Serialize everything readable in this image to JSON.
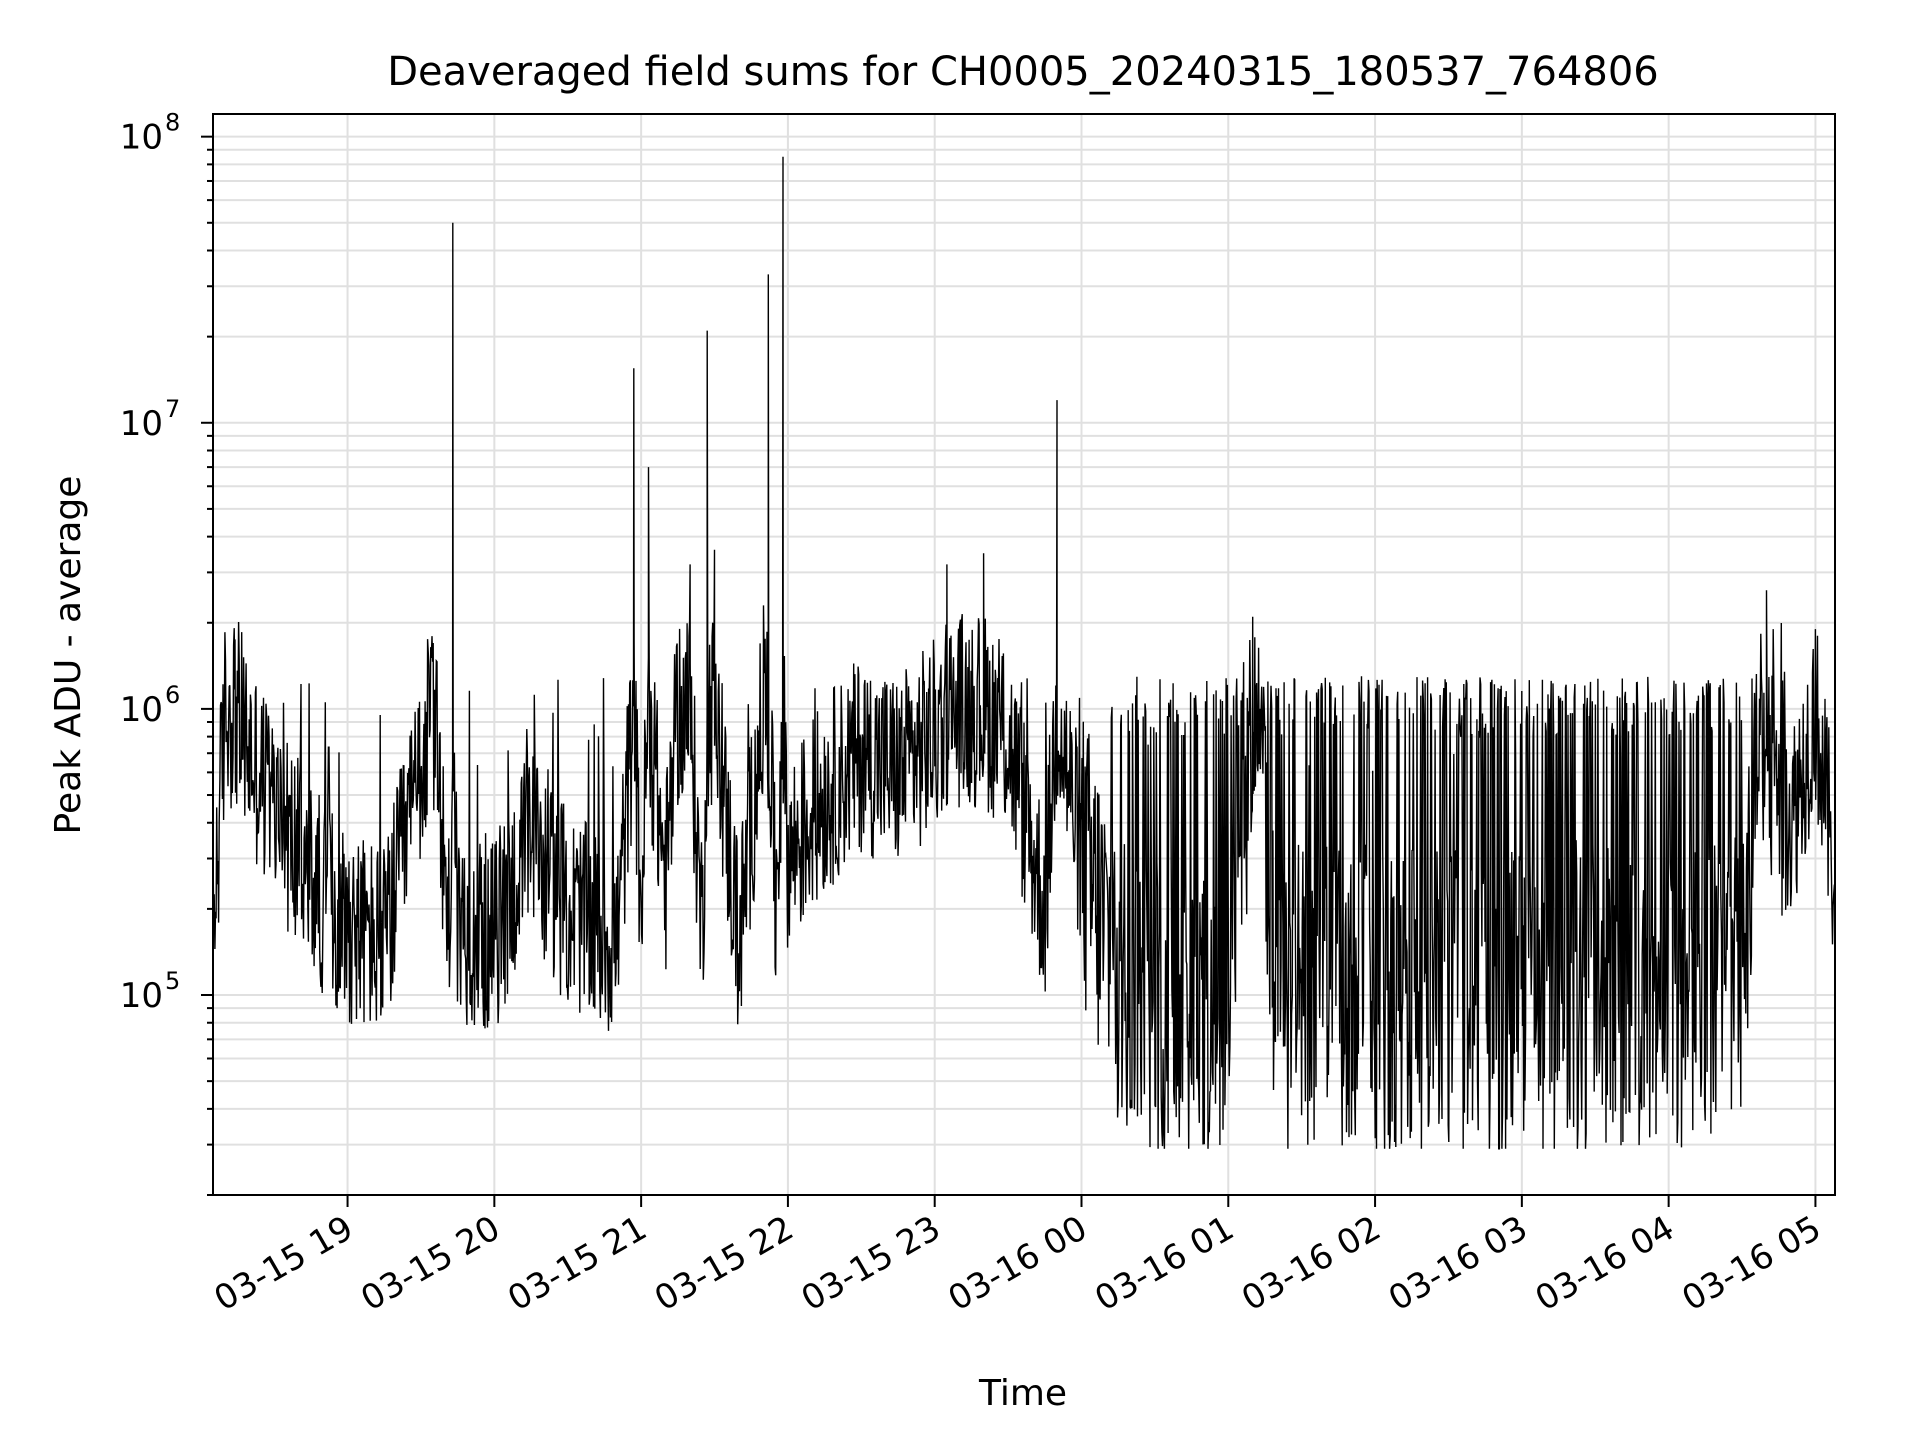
{
  "chart_data": {
    "type": "line",
    "title": "Deaveraged field sums for CH0005_20240315_180537_764806",
    "xlabel": "Time",
    "ylabel": "Peak ADU - average",
    "yscale": "log",
    "ylim": [
      20000,
      120000000
    ],
    "xlim": [
      "03-15 18:05",
      "03-16 05:08"
    ],
    "grid": true,
    "line_color": "#000000",
    "grid_color": "#e0e0e0",
    "x_ticks": [
      "03-15 19",
      "03-15 20",
      "03-15 21",
      "03-15 22",
      "03-15 23",
      "03-16 00",
      "03-16 01",
      "03-16 02",
      "03-16 03",
      "03-16 04",
      "03-16 05"
    ],
    "y_ticks": [
      {
        "base": "10",
        "exp": "5",
        "value": 100000
      },
      {
        "base": "10",
        "exp": "6",
        "value": 1000000
      },
      {
        "base": "10",
        "exp": "7",
        "value": 10000000
      },
      {
        "base": "10",
        "exp": "8",
        "value": 100000000
      }
    ],
    "series": [
      {
        "points": [
          [
            "03-15 18:05",
            160000
          ],
          [
            "03-15 18:10",
            1100000
          ],
          [
            "03-15 18:14",
            1750000
          ],
          [
            "03-15 18:20",
            700000
          ],
          [
            "03-15 18:30",
            450000
          ],
          [
            "03-15 18:45",
            250000
          ],
          [
            "03-15 19:00",
            180000
          ],
          [
            "03-15 19:15",
            150000
          ],
          [
            "03-15 19:35",
            1700000
          ],
          [
            "03-15 19:42",
            150000
          ],
          [
            "03-15 19:43",
            50000000
          ],
          [
            "03-15 19:45",
            180000
          ],
          [
            "03-15 20:00",
            160000
          ],
          [
            "03-15 20:15",
            350000
          ],
          [
            "03-15 20:30",
            200000
          ],
          [
            "03-15 20:50",
            150000
          ],
          [
            "03-15 20:57",
            15500000
          ],
          [
            "03-15 21:00",
            200000
          ],
          [
            "03-15 21:03",
            7000000
          ],
          [
            "03-15 21:10",
            250000
          ],
          [
            "03-15 21:15",
            1100000
          ],
          [
            "03-15 21:20",
            3200000
          ],
          [
            "03-15 21:25",
            160000
          ],
          [
            "03-15 21:27",
            21000000
          ],
          [
            "03-15 21:30",
            3600000
          ],
          [
            "03-15 21:40",
            150000
          ],
          [
            "03-15 21:50",
            2300000
          ],
          [
            "03-15 21:52",
            33000000
          ],
          [
            "03-15 21:55",
            200000
          ],
          [
            "03-15 21:58",
            85000000
          ],
          [
            "03-15 22:00",
            300000
          ],
          [
            "03-15 22:15",
            500000
          ],
          [
            "03-15 22:30",
            700000
          ],
          [
            "03-15 22:45",
            600000
          ],
          [
            "03-15 23:00",
            800000
          ],
          [
            "03-15 23:05",
            3200000
          ],
          [
            "03-15 23:15",
            1000000
          ],
          [
            "03-15 23:20",
            3500000
          ],
          [
            "03-15 23:30",
            800000
          ],
          [
            "03-15 23:45",
            200000
          ],
          [
            "03-15 23:50",
            12000000
          ],
          [
            "03-16 00:00",
            300000
          ],
          [
            "03-16 00:15",
            120000
          ],
          [
            "03-16 00:30",
            100000
          ],
          [
            "03-16 00:45",
            90000
          ],
          [
            "03-16 01:00",
            100000
          ],
          [
            "03-16 01:10",
            2100000
          ],
          [
            "03-16 01:20",
            85000
          ],
          [
            "03-16 01:30",
            100000
          ],
          [
            "03-16 02:00",
            100000
          ],
          [
            "03-16 02:30",
            90000
          ],
          [
            "03-16 03:00",
            95000
          ],
          [
            "03-16 03:30",
            100000
          ],
          [
            "03-16 04:00",
            100000
          ],
          [
            "03-16 04:30",
            120000
          ],
          [
            "03-16 04:40",
            2600000
          ],
          [
            "03-16 04:50",
            400000
          ],
          [
            "03-16 05:00",
            1900000
          ],
          [
            "03-16 05:08",
            250000
          ]
        ]
      }
    ]
  }
}
